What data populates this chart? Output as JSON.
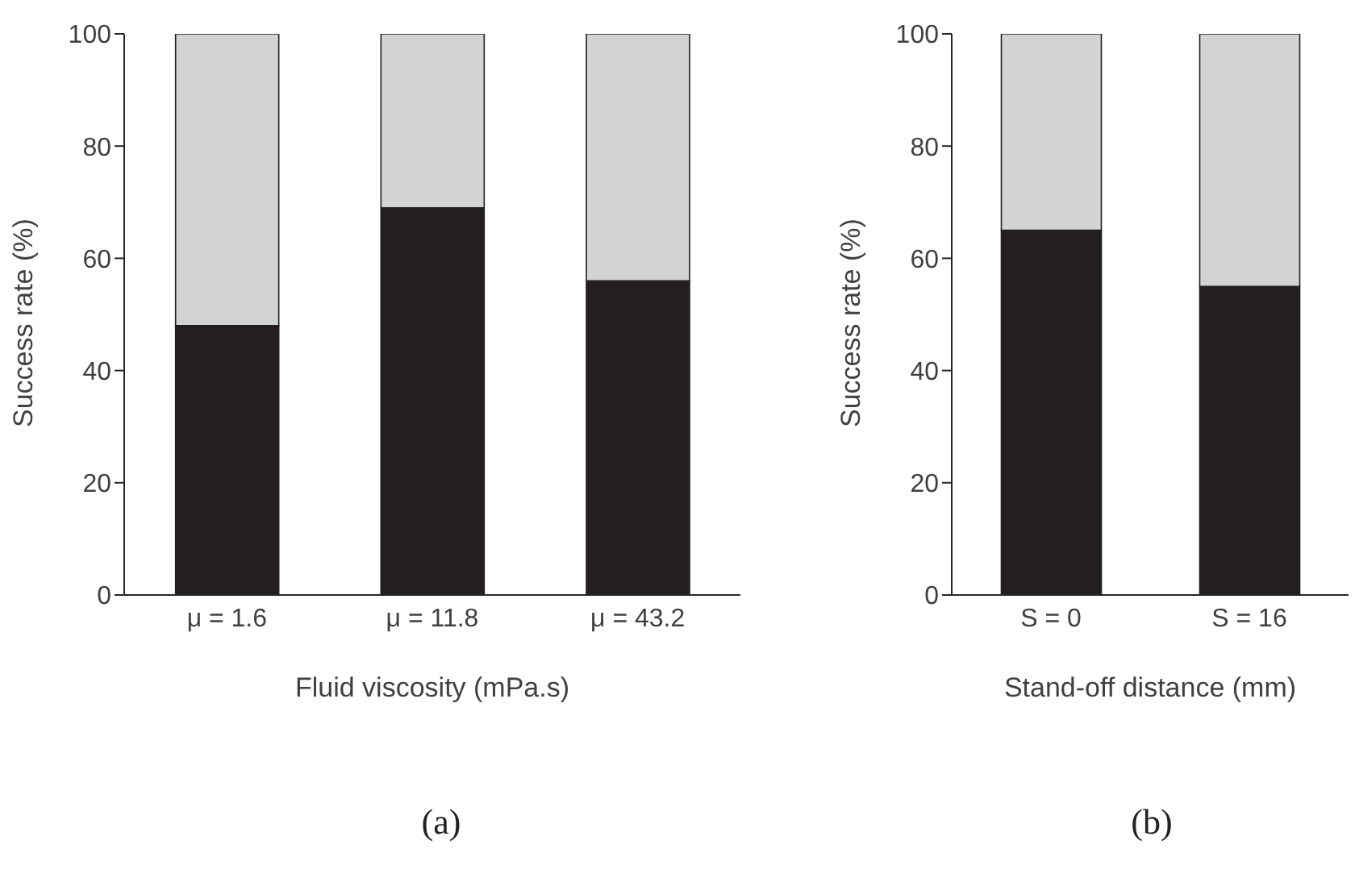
{
  "chart_data": [
    {
      "type": "bar",
      "title": "(a)",
      "xlabel": "Fluid viscosity (mPa.s)",
      "ylabel": "Success rate (%)",
      "categories": [
        "μ = 1.6",
        "μ = 11.8",
        "μ = 43.2"
      ],
      "stacked": true,
      "ylim": [
        0,
        100
      ],
      "yticks": [
        0,
        20,
        40,
        60,
        80,
        100
      ],
      "series": [
        {
          "color": "#231f20",
          "values": [
            48,
            69,
            56
          ]
        },
        {
          "color": "#d1d3d4",
          "values": [
            52,
            31,
            44
          ]
        }
      ]
    },
    {
      "type": "bar",
      "title": "(b)",
      "xlabel": "Stand-off distance (mm)",
      "ylabel": "Success rate (%)",
      "categories": [
        "S = 0",
        "S = 16"
      ],
      "stacked": true,
      "ylim": [
        0,
        100
      ],
      "yticks": [
        0,
        20,
        40,
        60,
        80,
        100
      ],
      "series": [
        {
          "color": "#231f20",
          "values": [
            65,
            55
          ]
        },
        {
          "color": "#d1d3d4",
          "values": [
            35,
            45
          ]
        }
      ]
    }
  ]
}
